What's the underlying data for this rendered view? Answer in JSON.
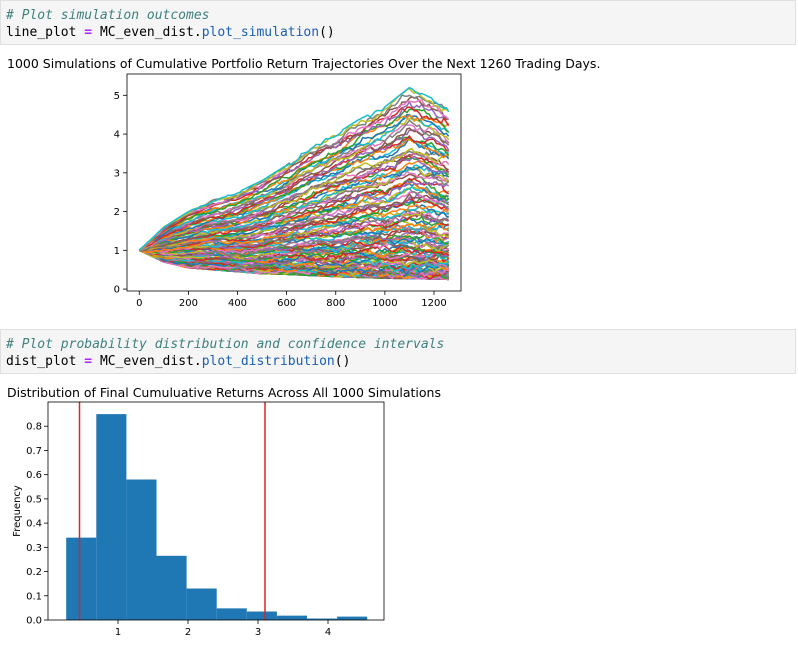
{
  "cell1": {
    "comment": "# Plot simulation outcomes",
    "var": "line_plot",
    "op": "=",
    "obj": "MC_even_dist.",
    "method": "plot_simulation",
    "parens": "()"
  },
  "cell2": {
    "comment": "# Plot probability distribution and confidence intervals",
    "var": "dist_plot",
    "op": "=",
    "obj": "MC_even_dist.",
    "method": "plot_distribution",
    "parens": "()"
  },
  "chart_data": [
    {
      "type": "line",
      "title": "1000 Simulations of Cumulative Portfolio Return Trajectories Over the Next 1260 Trading Days.",
      "xlabel": "",
      "ylabel": "",
      "xlim": [
        -50,
        1310
      ],
      "ylim": [
        -0.05,
        5.55
      ],
      "x_ticks": [
        0,
        200,
        400,
        600,
        800,
        1000,
        1200
      ],
      "y_ticks": [
        0,
        1,
        2,
        3,
        4,
        5
      ],
      "x_tick_labels": [
        "0",
        "200",
        "400",
        "600",
        "800",
        "1000",
        "1200"
      ],
      "y_tick_labels": [
        "0",
        "1",
        "2",
        "3",
        "4",
        "5"
      ],
      "n_simulations": 1000,
      "n_days": 1260,
      "start_value": 1.0,
      "envelope": {
        "x": [
          0,
          100,
          200,
          300,
          400,
          500,
          600,
          700,
          800,
          900,
          1000,
          1100,
          1200,
          1260
        ],
        "upper": [
          1.0,
          1.6,
          2.0,
          2.3,
          2.5,
          2.8,
          3.2,
          3.7,
          4.0,
          4.4,
          4.7,
          5.2,
          4.9,
          4.7
        ],
        "lower": [
          1.0,
          0.7,
          0.55,
          0.5,
          0.45,
          0.4,
          0.38,
          0.35,
          0.32,
          0.3,
          0.28,
          0.27,
          0.26,
          0.25
        ]
      },
      "colors": [
        "#1f77b4",
        "#ff7f0e",
        "#2ca02c",
        "#d62728",
        "#9467bd",
        "#8c564b",
        "#e377c2",
        "#7f7f7f",
        "#bcbd22",
        "#17becf"
      ],
      "grid": false
    },
    {
      "type": "bar",
      "title": "Distribution of Final Cumuluative Returns Across All 1000 Simulations",
      "xlabel": "",
      "ylabel": "Frequency",
      "xlim": [
        0.0,
        4.8
      ],
      "ylim": [
        0,
        0.9
      ],
      "x_ticks": [
        1,
        2,
        3,
        4
      ],
      "y_ticks": [
        0.0,
        0.1,
        0.2,
        0.3,
        0.4,
        0.5,
        0.6,
        0.7,
        0.8
      ],
      "x_tick_labels": [
        "1",
        "2",
        "3",
        "4"
      ],
      "y_tick_labels": [
        "0.0",
        "0.1",
        "0.2",
        "0.3",
        "0.4",
        "0.5",
        "0.6",
        "0.7",
        "0.8"
      ],
      "bin_edges": [
        0.26,
        0.69,
        1.12,
        1.55,
        1.98,
        2.41,
        2.84,
        3.27,
        3.7,
        4.13,
        4.56
      ],
      "values": [
        0.34,
        0.85,
        0.58,
        0.265,
        0.13,
        0.048,
        0.035,
        0.018,
        0.006,
        0.014
      ],
      "bar_color": "#1f77b4",
      "conf_lines": [
        0.45,
        3.1
      ],
      "conf_color": "#d62728",
      "grid": false
    }
  ]
}
